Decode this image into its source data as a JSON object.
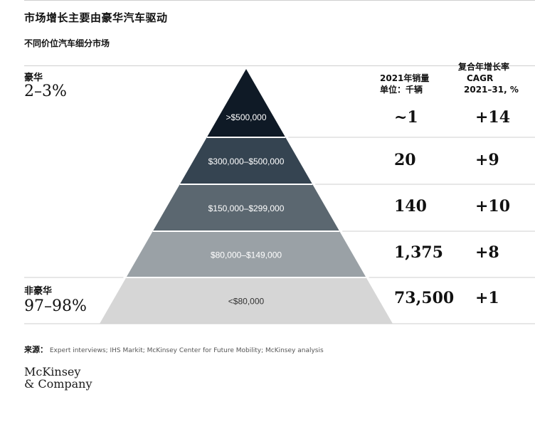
{
  "title": "市场增长主要由豪华汽车驱动",
  "subtitle": "不同价位汽车细分市场",
  "segments": {
    "luxury": {
      "label": "豪华",
      "share": "2–3%"
    },
    "non_luxury": {
      "label": "非豪华",
      "share": "97–98%"
    }
  },
  "columns": {
    "sales": {
      "line1": "2021年销量",
      "line2": "单位：千辆"
    },
    "cagr": {
      "line1": "复合年增长率",
      "line2": "CAGR",
      "line3": "2021–31, %"
    }
  },
  "colors": {
    "tier_fills": [
      "#0f1a26",
      "#354451",
      "#5b6770",
      "#9aa1a6",
      "#d6d6d6"
    ],
    "tier_text": [
      "#ffffff",
      "#ffffff",
      "#ffffff",
      "#ffffff",
      "#333333"
    ]
  },
  "source": {
    "label": "来源：",
    "text": "Expert interviews; IHS Markit; McKinsey Center for Future Mobility; McKinsey analysis"
  },
  "logo": {
    "line1": "McKinsey",
    "line2": "& Company"
  },
  "chart_data": {
    "type": "table",
    "rows": [
      {
        "price_range": ">$500,000",
        "sales_2021": "~1",
        "cagr": "+14"
      },
      {
        "price_range": "$300,000–$500,000",
        "sales_2021": "20",
        "cagr": "+9"
      },
      {
        "price_range": "$150,000–$299,000",
        "sales_2021": "140",
        "cagr": "+10"
      },
      {
        "price_range": "$80,000–$149,000",
        "sales_2021": "1,375",
        "cagr": "+8"
      },
      {
        "price_range": "<$80,000",
        "sales_2021": "73,500",
        "cagr": "+1"
      }
    ]
  }
}
